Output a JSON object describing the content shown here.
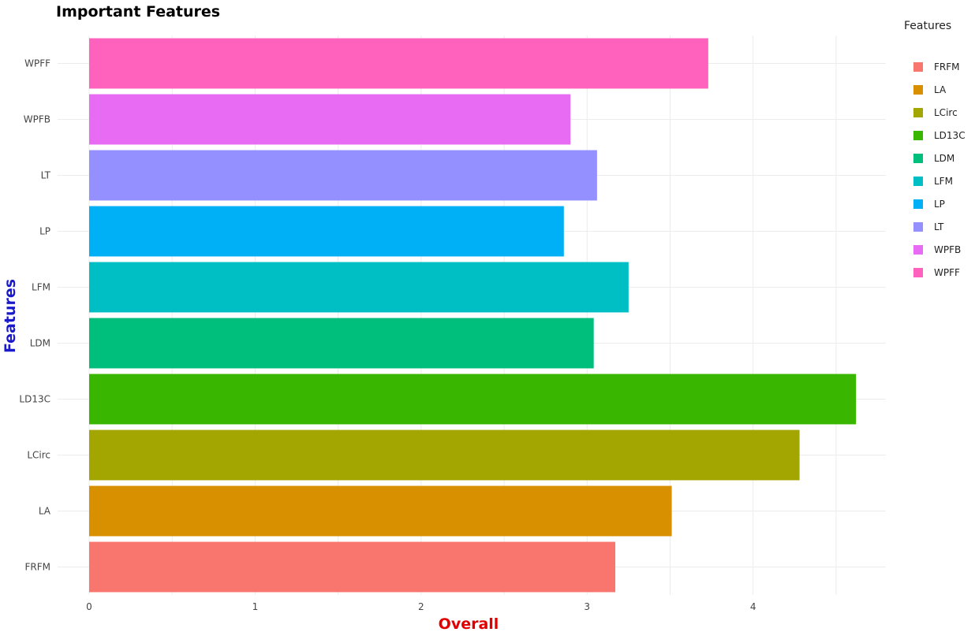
{
  "chart_data": {
    "type": "bar",
    "orientation": "horizontal",
    "title": "Important Features",
    "xlabel": "Overall",
    "ylabel": "Features",
    "xlabel_color": "#e00000",
    "ylabel_color": "#1a1acc",
    "xlim": [
      0,
      4.8
    ],
    "xticks": [
      0,
      1,
      2,
      3,
      4
    ],
    "grid": true,
    "legend_title": "Features",
    "legend_position": "right",
    "categories": [
      "FRFM",
      "LA",
      "LCirc",
      "LD13C",
      "LDM",
      "LFM",
      "LP",
      "LT",
      "WPFB",
      "WPFF"
    ],
    "values": [
      3.17,
      3.51,
      4.28,
      4.62,
      3.04,
      3.25,
      2.86,
      3.06,
      2.9,
      3.73
    ],
    "colors": [
      "#f8766d",
      "#d89000",
      "#a3a500",
      "#39b600",
      "#00bf7d",
      "#00bfc4",
      "#00b0f6",
      "#9590ff",
      "#e76bf3",
      "#ff62bc"
    ]
  }
}
